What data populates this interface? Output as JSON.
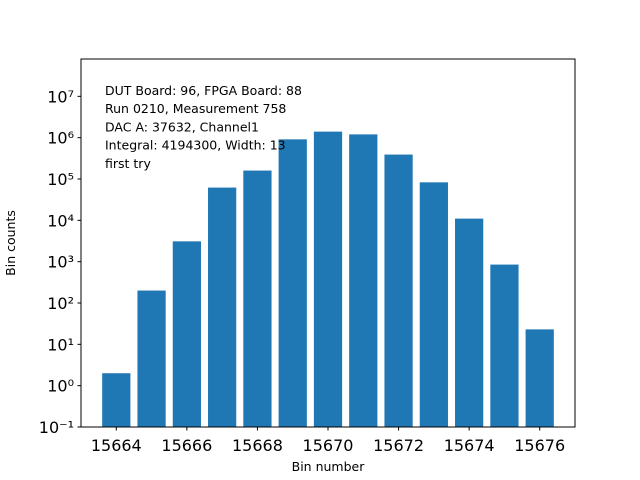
{
  "chart_data": {
    "type": "bar",
    "x": [
      15664,
      15665,
      15666,
      15667,
      15668,
      15669,
      15670,
      15671,
      15672,
      15673,
      15674,
      15675,
      15676
    ],
    "values": [
      2,
      200,
      3100,
      62000,
      160000,
      910000,
      1400000,
      1200000,
      390000,
      83000,
      11000,
      850,
      23
    ],
    "color": "#1f77b4",
    "xlim": [
      15663,
      15677
    ],
    "xticks": [
      15664,
      15666,
      15668,
      15670,
      15672,
      15674,
      15676
    ],
    "ylim": [
      0.1,
      80000000
    ],
    "yscale": "log",
    "yticks": [
      {
        "value": 0.1,
        "label": "10⁻¹"
      },
      {
        "value": 1,
        "label": "10⁰"
      },
      {
        "value": 10,
        "label": "10¹"
      },
      {
        "value": 100,
        "label": "10²"
      },
      {
        "value": 1000,
        "label": "10³"
      },
      {
        "value": 10000,
        "label": "10⁴"
      },
      {
        "value": 100000,
        "label": "10⁵"
      },
      {
        "value": 1000000,
        "label": "10⁶"
      },
      {
        "value": 10000000,
        "label": "10⁷"
      }
    ],
    "xlabel": "Bin number",
    "ylabel": "Bin counts",
    "annotations": [
      "DUT Board: 96, FPGA Board: 88",
      "Run 0210, Measurement 758",
      "DAC A: 37632, Channel1",
      "Integral: 4194300, Width: 13",
      "first try"
    ]
  }
}
